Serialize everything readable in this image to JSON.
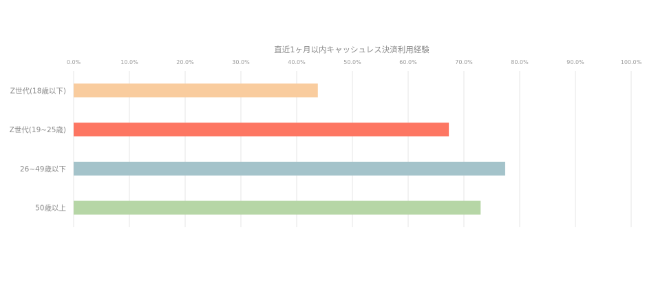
{
  "chart_data": {
    "type": "bar",
    "orientation": "horizontal",
    "title": "直近1ヶ月以内キャッシュレス決済利用経験",
    "categories": [
      "Z世代(18歳以下)",
      "Z世代(19~25歳)",
      "26~49歳以下",
      "50歳以上"
    ],
    "values": [
      43.8,
      67.3,
      77.4,
      73.0
    ],
    "colors": [
      "#f9cc9e",
      "#fd7662",
      "#a4c3ca",
      "#b6d6a6"
    ],
    "xlim": [
      0,
      100
    ],
    "x_ticks": [
      0,
      10,
      20,
      30,
      40,
      50,
      60,
      70,
      80,
      90,
      100
    ],
    "x_tick_labels": [
      "0.0%",
      "10.0%",
      "20.0%",
      "30.0%",
      "40.0%",
      "50.0%",
      "60.0%",
      "70.0%",
      "80.0%",
      "90.0%",
      "100.0%"
    ],
    "xlabel": "",
    "ylabel": "",
    "grid": "vertical",
    "axis_position": "top",
    "legend": "none"
  }
}
